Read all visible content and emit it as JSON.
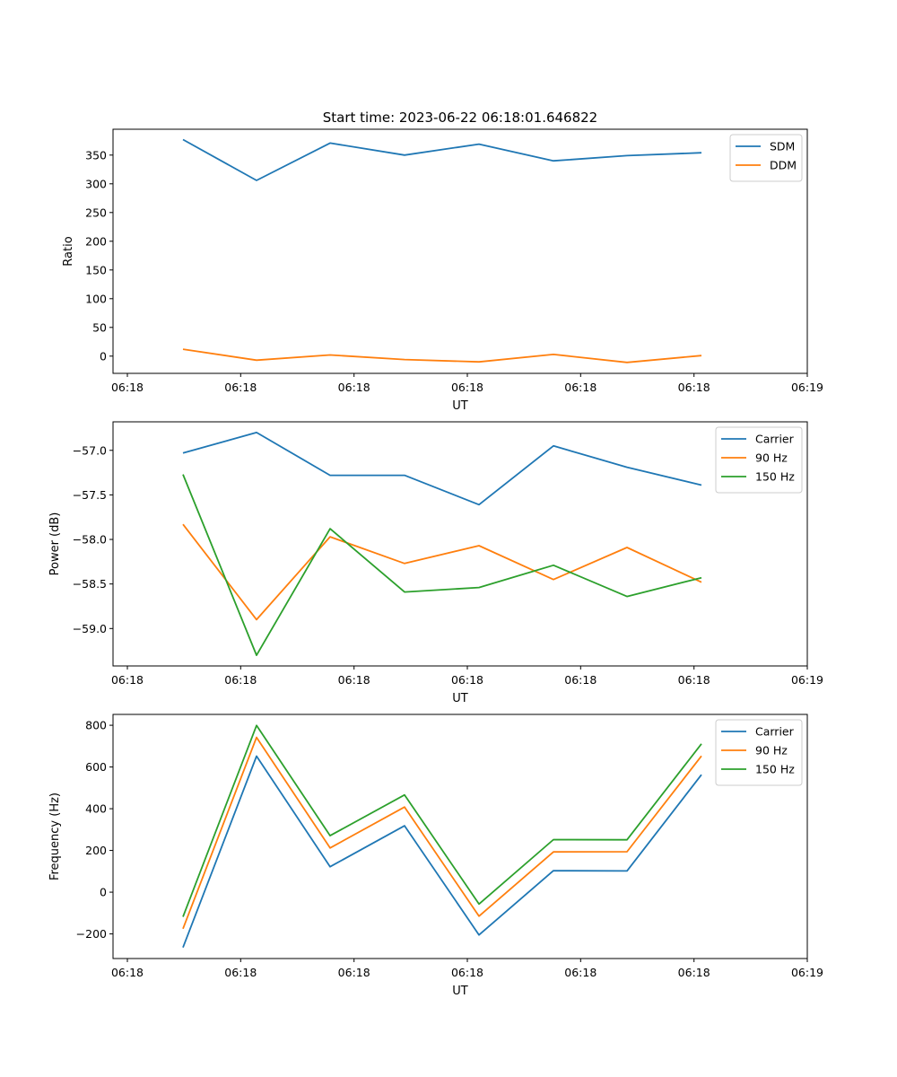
{
  "figure_title": "Start time: 2023-06-22 06:18:01.646822",
  "chart_data": [
    {
      "type": "line",
      "xlabel": "UT",
      "ylabel": "Ratio",
      "x_tick_labels": [
        "06:18",
        "06:18",
        "06:18",
        "06:18",
        "06:18",
        "06:18",
        "06:19"
      ],
      "y_ticks": [
        0,
        50,
        100,
        150,
        200,
        250,
        300,
        350
      ],
      "ylim": [
        -30,
        395
      ],
      "legend_position": "upper right",
      "series": [
        {
          "name": "SDM",
          "color": "#1f77b4",
          "values": [
            377,
            306,
            371,
            350,
            369,
            340,
            349,
            354
          ]
        },
        {
          "name": "DDM",
          "color": "#ff7f0e",
          "values": [
            12,
            -7,
            2,
            -6,
            -10,
            3,
            -11,
            1
          ]
        }
      ]
    },
    {
      "type": "line",
      "xlabel": "UT",
      "ylabel": "Power (dB)",
      "x_tick_labels": [
        "06:18",
        "06:18",
        "06:18",
        "06:18",
        "06:18",
        "06:18",
        "06:19"
      ],
      "y_ticks": [
        -59.0,
        -58.5,
        -58.0,
        -57.5,
        -57.0
      ],
      "y_tick_labels": [
        "−59.0",
        "−58.5",
        "−58.0",
        "−57.5",
        "−57.0"
      ],
      "ylim": [
        -59.42,
        -56.68
      ],
      "legend_position": "upper right",
      "series": [
        {
          "name": "Carrier",
          "color": "#1f77b4",
          "values": [
            -57.03,
            -56.8,
            -57.28,
            -57.28,
            -57.61,
            -56.95,
            -57.19,
            -57.39
          ]
        },
        {
          "name": "90 Hz",
          "color": "#ff7f0e",
          "values": [
            -57.83,
            -58.9,
            -57.97,
            -58.27,
            -58.07,
            -58.45,
            -58.09,
            -58.48
          ]
        },
        {
          "name": "150 Hz",
          "color": "#2ca02c",
          "values": [
            -57.27,
            -59.3,
            -57.88,
            -58.59,
            -58.54,
            -58.29,
            -58.64,
            -58.43
          ]
        }
      ]
    },
    {
      "type": "line",
      "xlabel": "UT",
      "ylabel": "Frequency (Hz)",
      "x_tick_labels": [
        "06:18",
        "06:18",
        "06:18",
        "06:18",
        "06:18",
        "06:18",
        "06:19"
      ],
      "y_ticks": [
        -200,
        0,
        200,
        400,
        600,
        800
      ],
      "y_tick_labels": [
        "−200",
        "0",
        "200",
        "400",
        "600",
        "800"
      ],
      "ylim": [
        -318,
        852
      ],
      "legend_position": "upper right",
      "series": [
        {
          "name": "Carrier",
          "color": "#1f77b4",
          "values": [
            -265,
            652,
            122,
            318,
            -205,
            103,
            102,
            563
          ]
        },
        {
          "name": "90 Hz",
          "color": "#ff7f0e",
          "values": [
            -175,
            742,
            212,
            408,
            -115,
            193,
            194,
            653
          ]
        },
        {
          "name": "150 Hz",
          "color": "#2ca02c",
          "values": [
            -118,
            799,
            271,
            466,
            -57,
            252,
            251,
            711
          ]
        }
      ]
    }
  ]
}
